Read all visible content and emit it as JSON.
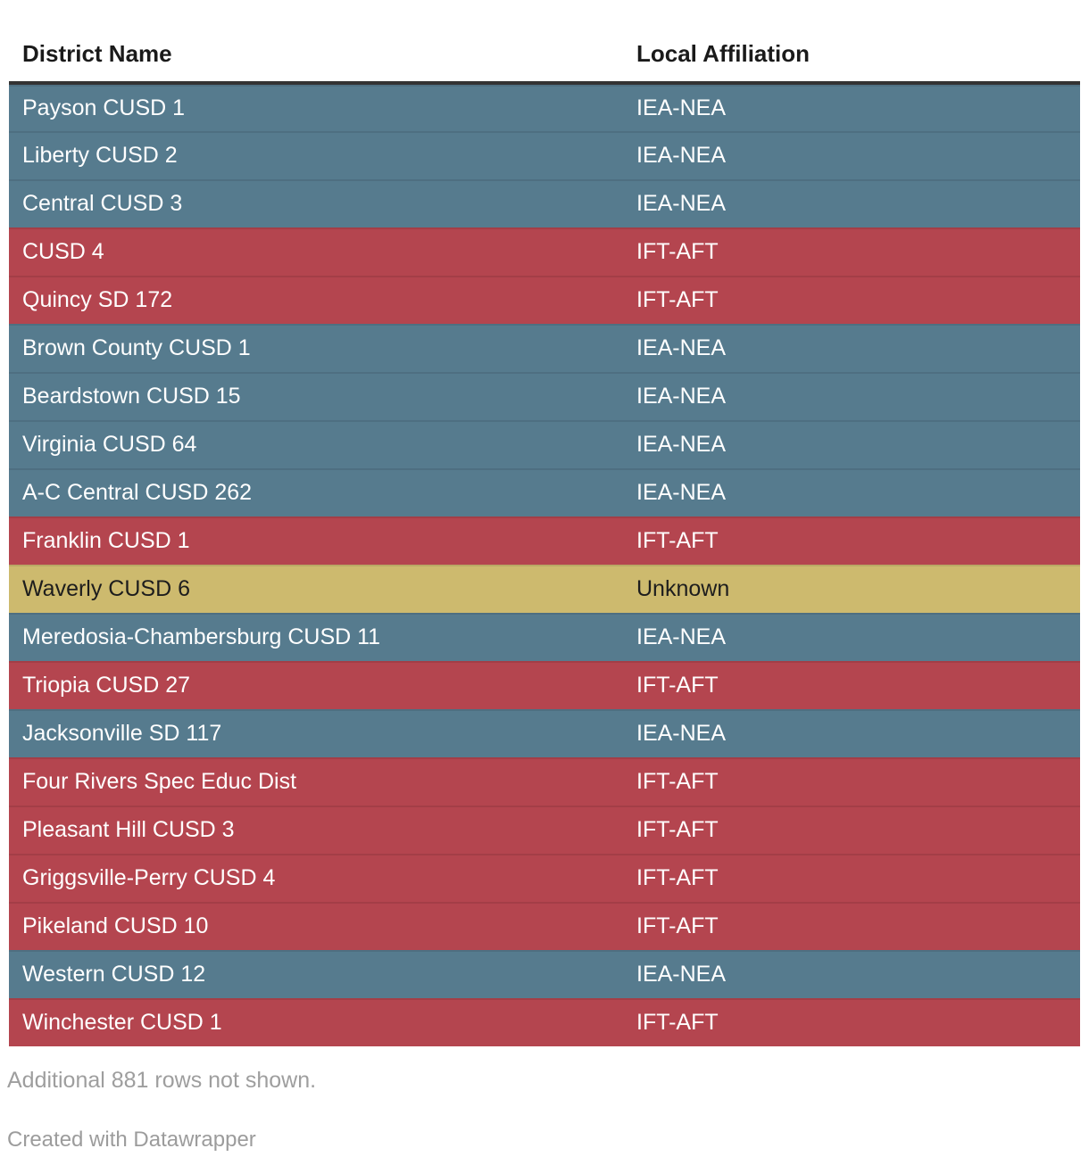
{
  "chart_data": {
    "type": "table",
    "columns": [
      {
        "label": "District Name"
      },
      {
        "label": "Local Affiliation"
      }
    ],
    "rows": [
      {
        "district": "Payson CUSD 1",
        "affiliation": "IEA-NEA"
      },
      {
        "district": "Liberty CUSD 2",
        "affiliation": "IEA-NEA"
      },
      {
        "district": "Central CUSD 3",
        "affiliation": "IEA-NEA"
      },
      {
        "district": "CUSD 4",
        "affiliation": "IFT-AFT"
      },
      {
        "district": "Quincy SD 172",
        "affiliation": "IFT-AFT"
      },
      {
        "district": "Brown County CUSD 1",
        "affiliation": "IEA-NEA"
      },
      {
        "district": "Beardstown CUSD 15",
        "affiliation": "IEA-NEA"
      },
      {
        "district": "Virginia CUSD 64",
        "affiliation": "IEA-NEA"
      },
      {
        "district": "A-C Central CUSD 262",
        "affiliation": "IEA-NEA"
      },
      {
        "district": "Franklin CUSD 1",
        "affiliation": "IFT-AFT"
      },
      {
        "district": "Waverly CUSD 6",
        "affiliation": "Unknown"
      },
      {
        "district": "Meredosia-Chambersburg CUSD 11",
        "affiliation": "IEA-NEA"
      },
      {
        "district": "Triopia CUSD 27",
        "affiliation": "IFT-AFT"
      },
      {
        "district": "Jacksonville SD 117",
        "affiliation": "IEA-NEA"
      },
      {
        "district": "Four Rivers Spec Educ Dist",
        "affiliation": "IFT-AFT"
      },
      {
        "district": "Pleasant Hill CUSD 3",
        "affiliation": "IFT-AFT"
      },
      {
        "district": "Griggsville-Perry CUSD 4",
        "affiliation": "IFT-AFT"
      },
      {
        "district": "Pikeland CUSD 10",
        "affiliation": "IFT-AFT"
      },
      {
        "district": "Western CUSD 12",
        "affiliation": "IEA-NEA"
      },
      {
        "district": "Winchester CUSD 1",
        "affiliation": "IFT-AFT"
      }
    ],
    "row_color_by_affiliation": {
      "IEA-NEA": {
        "bg": "#567b8e",
        "text": "#ffffff"
      },
      "IFT-AFT": {
        "bg": "#b4454f",
        "text": "#ffffff"
      },
      "Unknown": {
        "bg": "#cdba6e",
        "text": "#1d1d1d"
      }
    },
    "note": "Additional 881 rows not shown.",
    "layout_hints": {
      "header_border_color": "#333333",
      "grid": "subtle row separators between same-colored rows",
      "legend": "none"
    }
  },
  "footer": {
    "credit": "Created with Datawrapper"
  }
}
